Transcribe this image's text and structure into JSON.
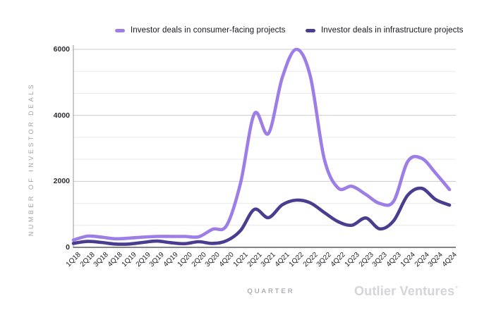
{
  "legend": {
    "items": [
      {
        "label": "Investor deals in consumer-facing projects",
        "key": "consumer"
      },
      {
        "label": "Investor deals in infrastructure projects",
        "key": "infrastructure"
      }
    ]
  },
  "axes": {
    "y_title": "NUMBER OF INVESTOR DEALS",
    "x_title": "QUARTER"
  },
  "branding": {
    "logo_text": "Outlier Ventures",
    "logo_mark": "°"
  },
  "colors": {
    "consumer": "#9d7de6",
    "infrastructure": "#4a3c8e",
    "grid_major": "#cbcbce",
    "grid_minor": "#e9e9ec",
    "y_axis": "#9a9aa0",
    "x_axis": "#5a5a60"
  },
  "chart_data": {
    "type": "line",
    "title": "",
    "xlabel": "QUARTER",
    "ylabel": "NUMBER OF INVESTOR DEALS",
    "ylim": [
      0,
      6000
    ],
    "y_major_ticks": [
      0,
      2000,
      4000,
      6000
    ],
    "y_minor_ticks": [
      667,
      1333,
      2667,
      3333,
      4667,
      5333
    ],
    "grid": "horizontal",
    "legend_position": "top",
    "smoothed": true,
    "categories": [
      "1Q18",
      "2Q18",
      "3Q18",
      "4Q18",
      "1Q19",
      "2Q19",
      "3Q19",
      "4Q19",
      "1Q20",
      "2Q20",
      "3Q20",
      "4Q20",
      "1Q21",
      "2Q21",
      "3Q21",
      "4Q21",
      "1Q22",
      "2Q22",
      "3Q22",
      "4Q22",
      "1Q23",
      "2Q23",
      "3Q23",
      "4Q23",
      "1Q24",
      "2Q24",
      "3Q24",
      "4Q24"
    ],
    "series": [
      {
        "name": "Investor deals in consumer-facing projects",
        "key": "consumer",
        "color": "#9d7de6",
        "values": [
          220,
          340,
          310,
          260,
          280,
          310,
          330,
          330,
          330,
          320,
          550,
          660,
          1950,
          4050,
          3450,
          5150,
          6000,
          5200,
          2700,
          1800,
          1850,
          1600,
          1330,
          1400,
          2600,
          2700,
          2250,
          1750
        ]
      },
      {
        "name": "Investor deals in infrastructure projects",
        "key": "infrastructure",
        "color": "#4a3c8e",
        "values": [
          120,
          180,
          150,
          100,
          100,
          150,
          190,
          140,
          110,
          170,
          120,
          200,
          510,
          1150,
          900,
          1290,
          1430,
          1350,
          1060,
          780,
          670,
          890,
          560,
          810,
          1580,
          1790,
          1450,
          1280
        ]
      }
    ]
  }
}
